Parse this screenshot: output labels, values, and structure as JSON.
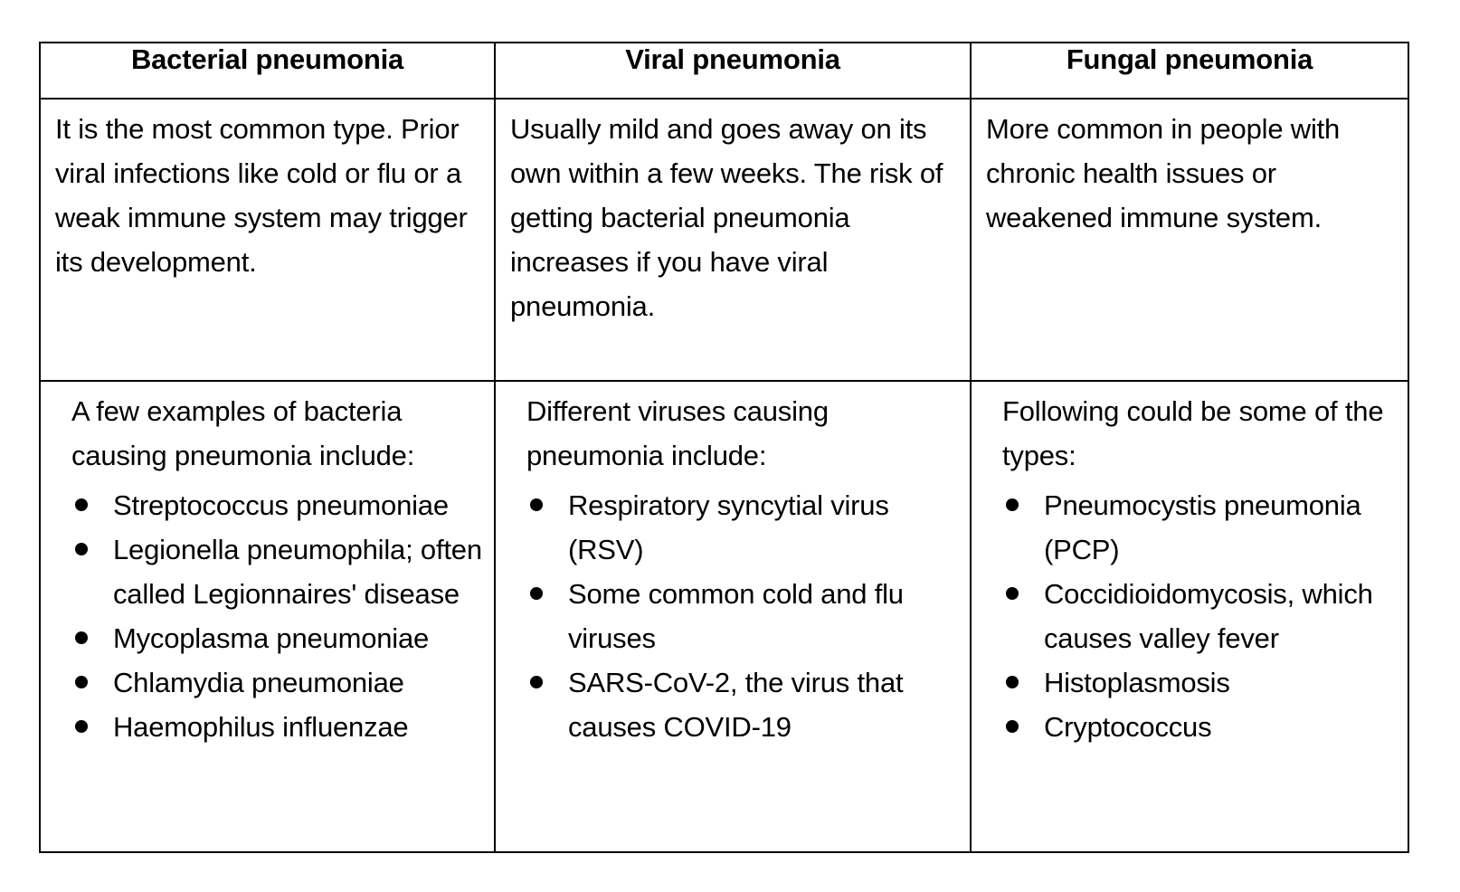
{
  "headers": {
    "bacterial": "Bacterial pneumonia",
    "viral": "Viral pneumonia",
    "fungal": "Fungal pneumonia"
  },
  "descriptions": {
    "bacterial": "It is the most common type. Prior viral infections like cold or flu or a weak immune system may trigger its development.",
    "viral": "Usually mild and goes away on its own within a few weeks. The risk of getting bacterial pneumonia increases if you have viral pneumonia.",
    "fungal": "More common in people with chronic health issues or weakened immune system."
  },
  "examples": {
    "bacterial": {
      "intro": "A few examples of bacteria causing pneumonia include:",
      "items": [
        "Streptococcus pneumoniae",
        "Legionella pneumophila; often called Legionnaires' disease",
        "Mycoplasma pneumoniae",
        "Chlamydia pneumoniae",
        "Haemophilus influenzae"
      ]
    },
    "viral": {
      "intro": "Different viruses causing pneumonia include:",
      "items": [
        "Respiratory syncytial virus (RSV)",
        "Some common cold and flu viruses",
        "SARS-CoV-2, the virus that causes COVID-19"
      ]
    },
    "fungal": {
      "intro": "Following could be some of the types:",
      "items": [
        "Pneumocystis pneumonia (PCP)",
        "Coccidioidomycosis, which causes valley fever",
        "Histoplasmosis",
        "Cryptococcus"
      ]
    }
  }
}
